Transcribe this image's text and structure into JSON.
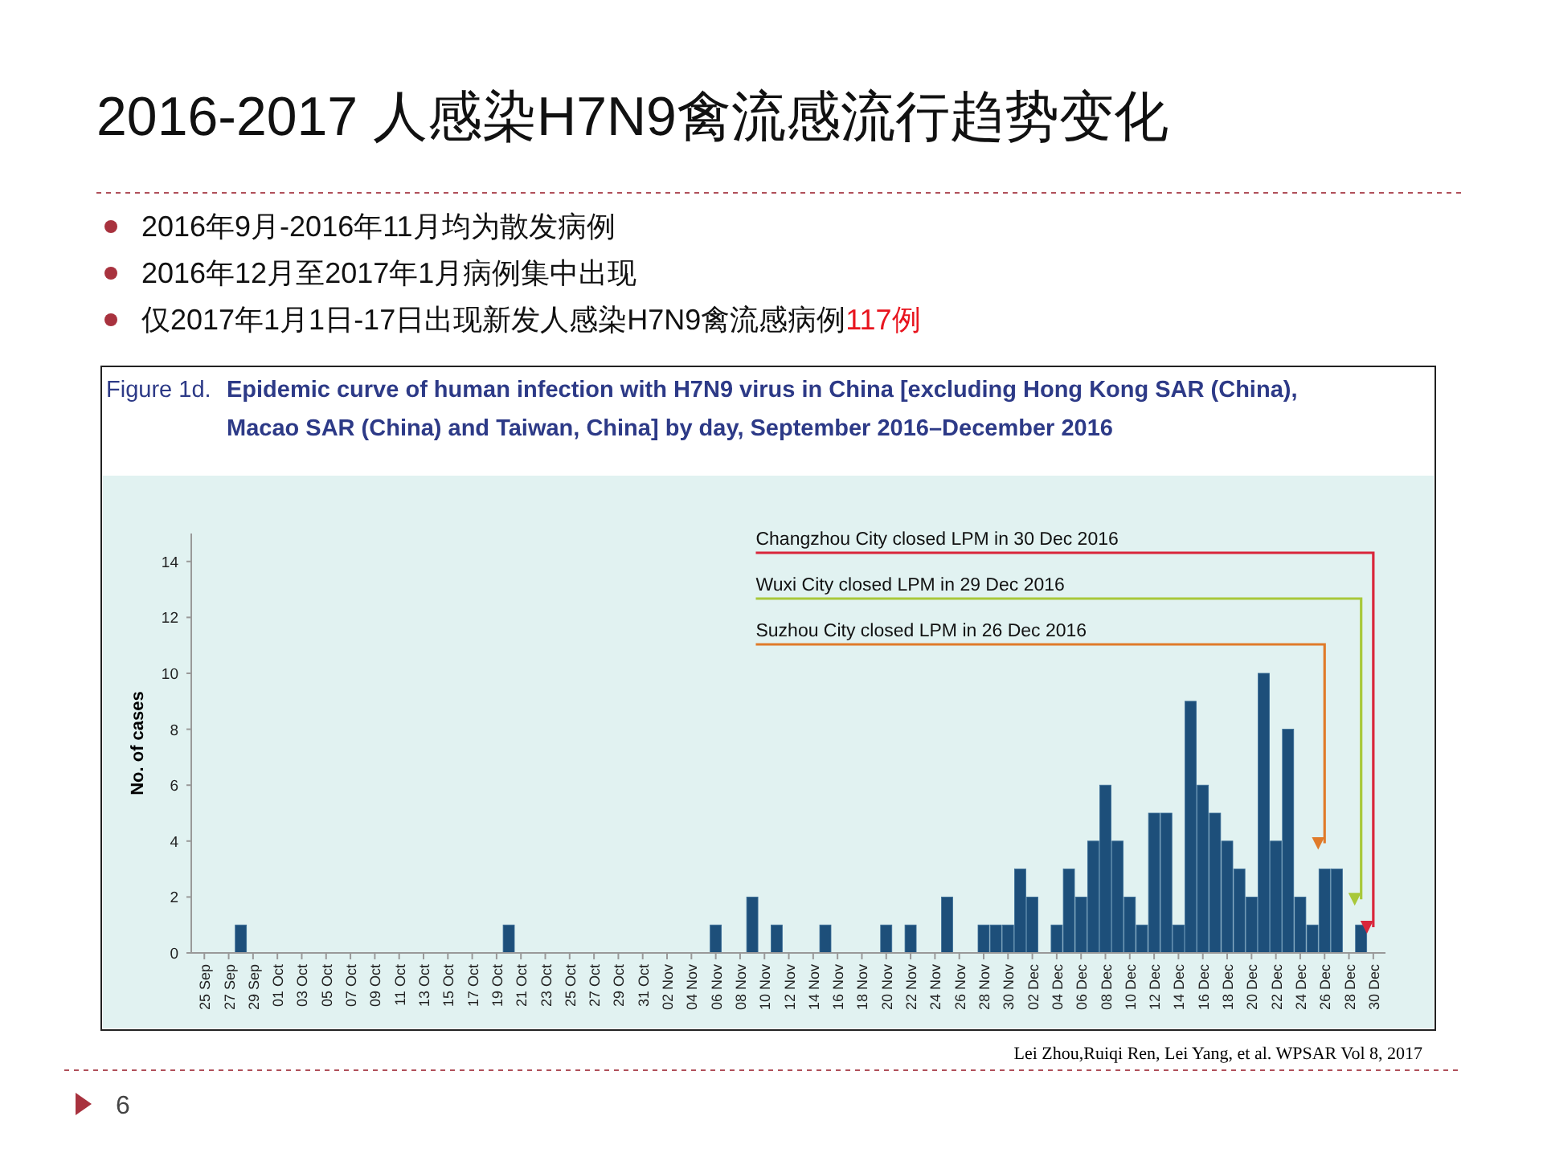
{
  "chart_data": {
    "type": "bar",
    "title": "2016-2017 人感染H7N9禽流感流行趋势变化",
    "subtitle": "Figure 1d. Epidemic curve of human infection with H7N9 virus in China [excluding Hong Kong SAR (China), Macao SAR (China) and Taiwan, China] by day, September 2016–December 2016",
    "ylabel": "No. of cases",
    "x": [
      "2016-09-25",
      "2016-09-26",
      "2016-09-27",
      "2016-09-28",
      "2016-09-29",
      "2016-09-30",
      "2016-10-01",
      "2016-10-02",
      "2016-10-03",
      "2016-10-04",
      "2016-10-05",
      "2016-10-06",
      "2016-10-07",
      "2016-10-08",
      "2016-10-09",
      "2016-10-10",
      "2016-10-11",
      "2016-10-12",
      "2016-10-13",
      "2016-10-14",
      "2016-10-15",
      "2016-10-16",
      "2016-10-17",
      "2016-10-18",
      "2016-10-19",
      "2016-10-20",
      "2016-10-21",
      "2016-10-22",
      "2016-10-23",
      "2016-10-24",
      "2016-10-25",
      "2016-10-26",
      "2016-10-27",
      "2016-10-28",
      "2016-10-29",
      "2016-10-30",
      "2016-10-31",
      "2016-11-01",
      "2016-11-02",
      "2016-11-03",
      "2016-11-04",
      "2016-11-05",
      "2016-11-06",
      "2016-11-07",
      "2016-11-08",
      "2016-11-09",
      "2016-11-10",
      "2016-11-11",
      "2016-11-12",
      "2016-11-13",
      "2016-11-14",
      "2016-11-15",
      "2016-11-16",
      "2016-11-17",
      "2016-11-18",
      "2016-11-19",
      "2016-11-20",
      "2016-11-21",
      "2016-11-22",
      "2016-11-23",
      "2016-11-24",
      "2016-11-25",
      "2016-11-26",
      "2016-11-27",
      "2016-11-28",
      "2016-11-29",
      "2016-11-30",
      "2016-12-01",
      "2016-12-02",
      "2016-12-03",
      "2016-12-04",
      "2016-12-05",
      "2016-12-06",
      "2016-12-07",
      "2016-12-08",
      "2016-12-09",
      "2016-12-10",
      "2016-12-11",
      "2016-12-12",
      "2016-12-13",
      "2016-12-14",
      "2016-12-15",
      "2016-12-16",
      "2016-12-17",
      "2016-12-18",
      "2016-12-19",
      "2016-12-20",
      "2016-12-21",
      "2016-12-22",
      "2016-12-23",
      "2016-12-24",
      "2016-12-25",
      "2016-12-26",
      "2016-12-27",
      "2016-12-28",
      "2016-12-29",
      "2016-12-30"
    ],
    "values": [
      0,
      0,
      0,
      1,
      0,
      0,
      0,
      0,
      0,
      0,
      0,
      0,
      0,
      0,
      0,
      0,
      0,
      0,
      0,
      0,
      0,
      0,
      0,
      0,
      0,
      1,
      0,
      0,
      0,
      0,
      0,
      0,
      0,
      0,
      0,
      0,
      0,
      0,
      0,
      0,
      0,
      0,
      1,
      0,
      0,
      2,
      0,
      1,
      0,
      0,
      0,
      1,
      0,
      0,
      0,
      0,
      1,
      0,
      1,
      0,
      0,
      2,
      0,
      0,
      1,
      1,
      1,
      3,
      2,
      0,
      1,
      3,
      2,
      4,
      6,
      4,
      2,
      1,
      5,
      5,
      1,
      9,
      6,
      5,
      4,
      3,
      2,
      10,
      4,
      8,
      2,
      1,
      3,
      3,
      0,
      1,
      0
    ],
    "color": "#1d4f7a",
    "xlim": [
      "2016-09-24",
      "2016-12-31"
    ],
    "xticks": [
      {
        "value": "2016-09-25",
        "label": "25 Sep"
      },
      {
        "value": "2016-09-27",
        "label": "27 Sep"
      },
      {
        "value": "2016-09-29",
        "label": "29 Sep"
      },
      {
        "value": "2016-10-01",
        "label": "01 Oct"
      },
      {
        "value": "2016-10-03",
        "label": "03 Oct"
      },
      {
        "value": "2016-10-05",
        "label": "05 Oct"
      },
      {
        "value": "2016-10-07",
        "label": "07 Oct"
      },
      {
        "value": "2016-10-09",
        "label": "09 Oct"
      },
      {
        "value": "2016-10-11",
        "label": "11 Oct"
      },
      {
        "value": "2016-10-13",
        "label": "13 Oct"
      },
      {
        "value": "2016-10-15",
        "label": "15 Oct"
      },
      {
        "value": "2016-10-17",
        "label": "17 Oct"
      },
      {
        "value": "2016-10-19",
        "label": "19 Oct"
      },
      {
        "value": "2016-10-21",
        "label": "21 Oct"
      },
      {
        "value": "2016-10-23",
        "label": "23 Oct"
      },
      {
        "value": "2016-10-25",
        "label": "25 Oct"
      },
      {
        "value": "2016-10-27",
        "label": "27 Oct"
      },
      {
        "value": "2016-10-29",
        "label": "29 Oct"
      },
      {
        "value": "2016-10-31",
        "label": "31 Oct"
      },
      {
        "value": "2016-11-02",
        "label": "02 Nov"
      },
      {
        "value": "2016-11-04",
        "label": "04 Nov"
      },
      {
        "value": "2016-11-06",
        "label": "06 Nov"
      },
      {
        "value": "2016-11-08",
        "label": "08 Nov"
      },
      {
        "value": "2016-11-10",
        "label": "10 Nov"
      },
      {
        "value": "2016-11-12",
        "label": "12 Nov"
      },
      {
        "value": "2016-11-14",
        "label": "14 Nov"
      },
      {
        "value": "2016-11-16",
        "label": "16 Nov"
      },
      {
        "value": "2016-11-18",
        "label": "18 Nov"
      },
      {
        "value": "2016-11-20",
        "label": "20 Nov"
      },
      {
        "value": "2016-11-22",
        "label": "22 Nov"
      },
      {
        "value": "2016-11-24",
        "label": "24 Nov"
      },
      {
        "value": "2016-11-26",
        "label": "26 Nov"
      },
      {
        "value": "2016-11-28",
        "label": "28 Nov"
      },
      {
        "value": "2016-11-30",
        "label": "30 Nov"
      },
      {
        "value": "2016-12-02",
        "label": "02 Dec"
      },
      {
        "value": "2016-12-04",
        "label": "04 Dec"
      },
      {
        "value": "2016-12-06",
        "label": "06 Dec"
      },
      {
        "value": "2016-12-08",
        "label": "08 Dec"
      },
      {
        "value": "2016-12-10",
        "label": "10 Dec"
      },
      {
        "value": "2016-12-12",
        "label": "12 Dec"
      },
      {
        "value": "2016-12-14",
        "label": "14 Dec"
      },
      {
        "value": "2016-12-16",
        "label": "16 Dec"
      },
      {
        "value": "2016-12-18",
        "label": "18 Dec"
      },
      {
        "value": "2016-12-20",
        "label": "20 Dec"
      },
      {
        "value": "2016-12-22",
        "label": "22 Dec"
      },
      {
        "value": "2016-12-24",
        "label": "24 Dec"
      },
      {
        "value": "2016-12-26",
        "label": "26 Dec"
      },
      {
        "value": "2016-12-28",
        "label": "28 Dec"
      },
      {
        "value": "2016-12-30",
        "label": "30 Dec"
      }
    ],
    "ylim": [
      0,
      15
    ],
    "yticks": [
      0,
      2,
      4,
      6,
      8,
      10,
      12,
      14
    ],
    "ref_lines": [
      {
        "axis": "x",
        "value": "2016-12-30",
        "label": "Changzhou City closed LPM in 30 Dec 2016",
        "color": "#d9263b"
      },
      {
        "axis": "x",
        "value": "2016-12-29",
        "label": "Wuxi City closed LPM in 29 Dec 2016",
        "color": "#a8c83a"
      },
      {
        "axis": "x",
        "value": "2016-12-26",
        "label": "Suzhou City closed LPM in 26 Dec 2016",
        "color": "#e07b2a"
      }
    ],
    "annotations": [
      "2016年9月-2016年11月均为散发病例",
      "2016年12月至2017年1月病例集中出现",
      "仅2017年1月1日-17日出现新发人感染H7N9禽流感病例117例",
      "Lei Zhou,Ruiqi Ren, Lei Yang, et al. WPSAR Vol 8, 2017",
      "6"
    ]
  }
}
